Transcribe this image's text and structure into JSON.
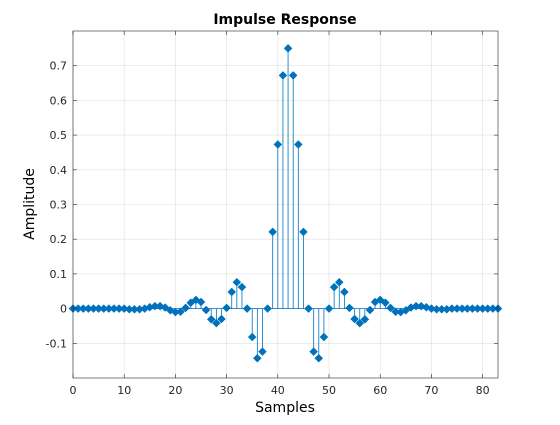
{
  "chart_data": {
    "type": "stem",
    "title": "Impulse Response",
    "xlabel": "Samples",
    "ylabel": "Amplitude",
    "xlim": [
      0,
      83
    ],
    "ylim": [
      -0.2,
      0.8
    ],
    "xticks": [
      0,
      10,
      20,
      30,
      40,
      50,
      60,
      70,
      80
    ],
    "xtick_labels": [
      "0",
      "10",
      "20",
      "30",
      "40",
      "50",
      "60",
      "70",
      "80"
    ],
    "yticks": [
      -0.1,
      0,
      0.1,
      0.2,
      0.3,
      0.4,
      0.5,
      0.6,
      0.7
    ],
    "ytick_labels": [
      "-0.1",
      "0",
      "0.1",
      "0.2",
      "0.3",
      "0.4",
      "0.5",
      "0.6",
      "0.7"
    ],
    "grid": true,
    "marker": "filled-diamond",
    "color": "#0072bd",
    "series": [
      {
        "x": [
          0,
          1,
          2,
          3,
          4,
          5,
          6,
          7,
          8,
          9,
          10,
          11,
          12,
          13,
          14,
          15,
          16,
          17,
          18,
          19,
          20,
          21,
          22,
          23,
          24,
          25,
          26,
          27,
          28,
          29,
          30,
          31,
          32,
          33,
          34,
          35,
          36,
          37,
          38,
          39,
          40,
          41,
          42,
          43,
          44,
          45,
          46,
          47,
          48,
          49,
          50,
          51,
          52,
          53,
          54,
          55,
          56,
          57,
          58,
          59,
          60,
          61,
          62,
          63,
          64,
          65,
          66,
          67,
          68,
          69,
          70,
          71,
          72,
          73,
          74,
          75,
          76,
          77,
          78,
          79,
          80,
          81,
          82,
          83
        ],
        "y": [
          0,
          0,
          0,
          0,
          0,
          0,
          0,
          0,
          0,
          0,
          0,
          -0.002,
          -0.002,
          -0.002,
          0,
          0.004,
          0.007,
          0.007,
          0.003,
          -0.005,
          -0.01,
          -0.009,
          0.002,
          0.017,
          0.025,
          0.019,
          -0.004,
          -0.031,
          -0.042,
          -0.03,
          0.002,
          0.048,
          0.076,
          0.062,
          0,
          -0.082,
          -0.143,
          -0.124,
          0,
          0.221,
          0.473,
          0.672,
          0.75,
          0.672,
          0.473,
          0.221,
          0,
          -0.124,
          -0.143,
          -0.082,
          0,
          0.062,
          0.076,
          0.048,
          0.002,
          -0.03,
          -0.042,
          -0.031,
          -0.004,
          0.019,
          0.025,
          0.017,
          0.002,
          -0.009,
          -0.01,
          -0.005,
          0.003,
          0.007,
          0.007,
          0.004,
          0,
          -0.002,
          -0.002,
          -0.002,
          0,
          0,
          0,
          0,
          0,
          0,
          0,
          0,
          0,
          0
        ]
      }
    ]
  }
}
